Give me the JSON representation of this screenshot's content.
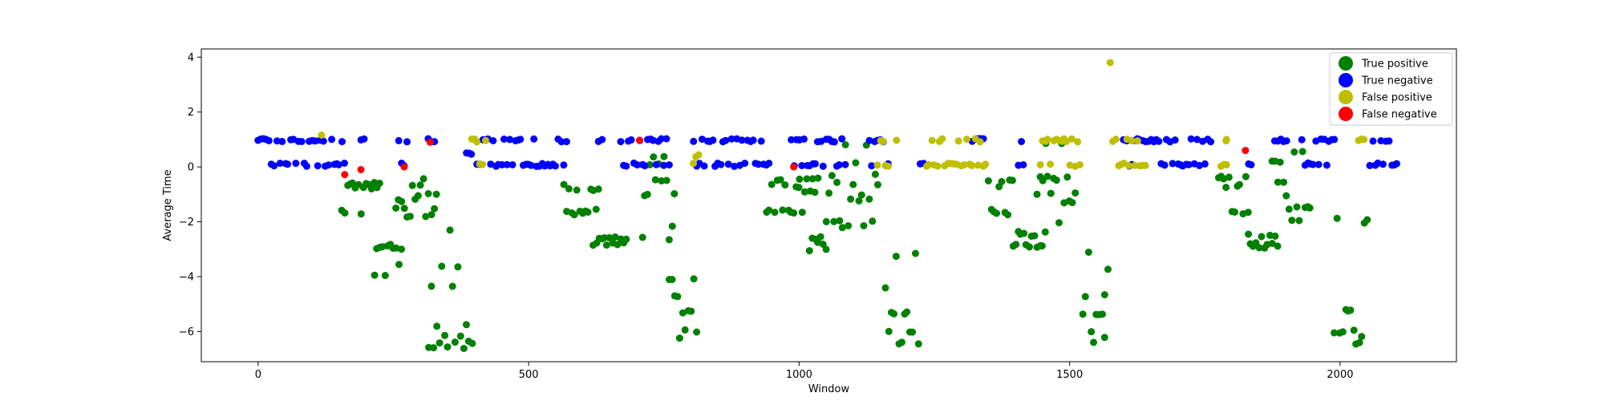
{
  "chart_data": {
    "type": "scatter",
    "title": "",
    "xlabel": "Window",
    "ylabel": "Average Time",
    "xlim": [
      -105,
      2215
    ],
    "ylim": [
      -7.1,
      4.3
    ],
    "xticks": [
      0,
      500,
      1000,
      1500,
      2000
    ],
    "yticks": [
      -6,
      -4,
      -2,
      0,
      2,
      4
    ],
    "grid": false,
    "legend_position": "top-right",
    "series": [
      {
        "name": "True positive",
        "color": "#008000",
        "segments": [
          {
            "x0": 155,
            "x1": 168,
            "values": [
              -0.7,
              -1.6,
              -1.7
            ]
          },
          {
            "x0": 170,
            "x1": 225,
            "values": [
              -0.8,
              -1.7,
              -0.6
            ]
          },
          {
            "x0": 215,
            "x1": 265,
            "values": [
              -2.8,
              -2.9,
              -3.0,
              -3.5,
              -3.9
            ]
          },
          {
            "x0": 255,
            "x1": 330,
            "values": [
              -1.0,
              -0.7,
              -0.4,
              0.2,
              -1.5,
              -1.8,
              -1.2
            ]
          },
          {
            "x0": 315,
            "x1": 395,
            "values": [
              -6.0,
              -6.2,
              -5.8,
              -6.4,
              -3.6,
              -4.4,
              -5.2,
              -6.6,
              -2.3,
              -4.1,
              -4.7
            ]
          },
          {
            "x0": 565,
            "x1": 630,
            "values": [
              -0.7,
              -1.6,
              -1.7,
              -0.8
            ]
          },
          {
            "x0": 620,
            "x1": 680,
            "values": [
              -2.8,
              -2.9,
              -2.6
            ]
          },
          {
            "x0": 710,
            "x1": 770,
            "values": [
              -0.5,
              -1.0,
              -1.7,
              0.1,
              0.4,
              -2.6,
              -2.2
            ]
          },
          {
            "x0": 760,
            "x1": 810,
            "values": [
              -6.0,
              -6.2,
              -5.8,
              -3.5,
              -4.7,
              -5.3,
              -4.1
            ]
          },
          {
            "x0": 940,
            "x1": 1000,
            "values": [
              -0.7,
              -1.6,
              -1.7,
              -0.5
            ]
          },
          {
            "x0": 1000,
            "x1": 1035,
            "values": [
              -0.4,
              -1.6,
              -0.9
            ]
          },
          {
            "x0": 1020,
            "x1": 1050,
            "values": [
              -2.8,
              -3.0,
              -2.6
            ]
          },
          {
            "x0": 1050,
            "x1": 1145,
            "values": [
              -1.0,
              -1.2,
              -0.6,
              0.8,
              -2.0,
              -1.5,
              -0.3,
              0.2,
              -2.2
            ]
          },
          {
            "x0": 1160,
            "x1": 1220,
            "values": [
              -6.0,
              -6.2,
              -6.4,
              -2.9,
              -4.4,
              -5.3,
              -3.2
            ]
          },
          {
            "x0": 1350,
            "x1": 1395,
            "values": [
              -0.7,
              -1.6,
              -1.7,
              -0.5
            ]
          },
          {
            "x0": 1395,
            "x1": 1455,
            "values": [
              -2.8,
              -2.9,
              -2.5,
              -2.4
            ]
          },
          {
            "x0": 1440,
            "x1": 1510,
            "values": [
              -1.0,
              -0.5,
              0.8,
              -1.3,
              -2.0,
              -0.4
            ]
          },
          {
            "x0": 1525,
            "x1": 1565,
            "values": [
              -6.0,
              -6.2,
              -6.4,
              -3.1,
              -4.7,
              -5.4
            ]
          },
          {
            "x0": 1565,
            "x1": 1572,
            "values": [
              -3.7,
              -4.7,
              -0.8
            ]
          },
          {
            "x0": 1775,
            "x1": 1830,
            "values": [
              -0.7,
              -1.6,
              -1.7,
              -0.4
            ]
          },
          {
            "x0": 1830,
            "x1": 1885,
            "values": [
              -2.8,
              -2.9,
              -2.5,
              -2.2
            ]
          },
          {
            "x0": 1875,
            "x1": 1945,
            "values": [
              -0.5,
              -1.0,
              0.6,
              -1.5,
              -1.9,
              0.2
            ]
          },
          {
            "x0": 1990,
            "x1": 2050,
            "values": [
              -6.0,
              -6.2,
              -6.4,
              -1.9,
              -4.4,
              -5.2,
              -2.1,
              -3.8
            ]
          }
        ]
      },
      {
        "name": "True negative",
        "color": "#0000ff",
        "segments": [
          {
            "x0": 0,
            "x1": 160,
            "values": [
              0.97,
              0.08
            ]
          },
          {
            "x0": 190,
            "x1": 195,
            "values": [
              0.97
            ]
          },
          {
            "x0": 260,
            "x1": 275,
            "values": [
              0.97,
              0.08
            ]
          },
          {
            "x0": 315,
            "x1": 325,
            "values": [
              0.97
            ]
          },
          {
            "x0": 385,
            "x1": 395,
            "values": [
              0.5
            ]
          },
          {
            "x0": 405,
            "x1": 570,
            "values": [
              0.97,
              0.08
            ]
          },
          {
            "x0": 630,
            "x1": 635,
            "values": [
              0.97
            ]
          },
          {
            "x0": 670,
            "x1": 760,
            "values": [
              0.97,
              0.08
            ]
          },
          {
            "x0": 805,
            "x1": 945,
            "values": [
              0.97,
              0.08
            ]
          },
          {
            "x0": 985,
            "x1": 1085,
            "values": [
              0.97,
              0.08
            ]
          },
          {
            "x0": 1130,
            "x1": 1165,
            "values": [
              0.97,
              0.08
            ]
          },
          {
            "x0": 1225,
            "x1": 1230,
            "values": [
              0.08
            ]
          },
          {
            "x0": 1320,
            "x1": 1340,
            "values": [
              0.97
            ]
          },
          {
            "x0": 1405,
            "x1": 1415,
            "values": [
              0.97,
              0.08
            ]
          },
          {
            "x0": 1600,
            "x1": 1760,
            "values": [
              0.97,
              0.08
            ]
          },
          {
            "x0": 1830,
            "x1": 1835,
            "values": [
              0.08
            ]
          },
          {
            "x0": 1880,
            "x1": 1900,
            "values": [
              0.97
            ]
          },
          {
            "x0": 1930,
            "x1": 1990,
            "values": [
              0.97,
              0.08
            ]
          },
          {
            "x0": 2055,
            "x1": 2105,
            "values": [
              0.97,
              0.08
            ]
          }
        ]
      },
      {
        "name": "False positive",
        "color": "#bfbf00",
        "segments": [
          {
            "x0": 118,
            "x1": 122,
            "values": [
              1.2
            ]
          },
          {
            "x0": 395,
            "x1": 420,
            "values": [
              0.97,
              0.05
            ]
          },
          {
            "x0": 805,
            "x1": 815,
            "values": [
              0.4,
              0.1,
              0.9
            ]
          },
          {
            "x0": 1145,
            "x1": 1165,
            "values": [
              0.97,
              0.08
            ]
          },
          {
            "x0": 1235,
            "x1": 1345,
            "values": [
              0.97,
              0.08
            ]
          },
          {
            "x0": 1445,
            "x1": 1520,
            "values": [
              0.97,
              0.08
            ]
          },
          {
            "x0": 1580,
            "x1": 1640,
            "values": [
              0.97,
              0.08
            ]
          },
          {
            "x0": 1780,
            "x1": 1790,
            "values": [
              0.97,
              0.08
            ]
          },
          {
            "x0": 2035,
            "x1": 2045,
            "values": [
              0.97
            ]
          }
        ],
        "points": [
          [
            1575,
            3.8
          ],
          [
            1790,
            1.0
          ],
          [
            1790,
            0.08
          ],
          [
            1180,
            0.97
          ]
        ]
      },
      {
        "name": "False negative",
        "color": "#ff0000",
        "points": [
          [
            160,
            -0.28
          ],
          [
            190,
            -0.1
          ],
          [
            270,
            0.0
          ],
          [
            318,
            0.9
          ],
          [
            705,
            0.97
          ],
          [
            990,
            0.0
          ],
          [
            1825,
            0.6
          ]
        ]
      }
    ]
  }
}
